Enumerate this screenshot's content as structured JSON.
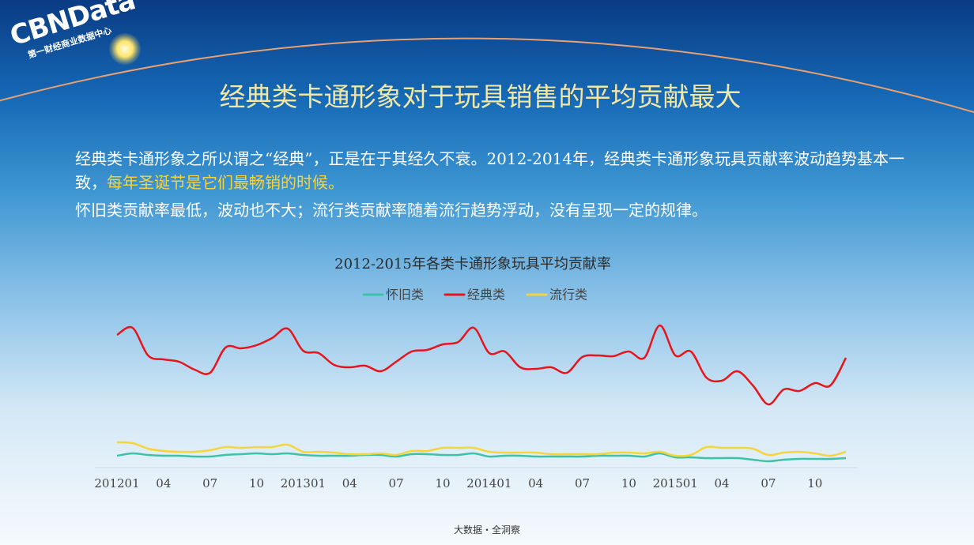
{
  "page": {
    "logo": "CBNData",
    "logo_sub": "第一财经商业数据中心",
    "heading": "经典类卡通形象对于玩具销售的平均贡献最大",
    "paragraphs": [
      [
        "经典类卡通形象之所以谓之“经典”，正是在于其经久不衰。2012-2014年，经典类卡通形象玩具贡献率波动趋势基本一致，",
        "每年圣诞节是它们最畅销的时候。"
      ],
      [
        "怀旧类贡献率最低，波动也不大；流行类贡献率随着流行趋势浮动，没有呈现一定的规律。"
      ]
    ],
    "footer": "大数据・全洞察"
  },
  "chart_data": {
    "type": "line",
    "title": "2012-2015年各类卡通形象玩具平均贡献率",
    "categories": [
      "201201",
      null,
      null,
      "04",
      null,
      null,
      "07",
      null,
      null,
      "10",
      null,
      null,
      "201301",
      null,
      null,
      "04",
      null,
      null,
      "07",
      null,
      null,
      "10",
      null,
      null,
      "201401",
      null,
      null,
      "04",
      null,
      null,
      "07",
      null,
      null,
      "10",
      null,
      null,
      "201501",
      null,
      null,
      "04",
      null,
      null,
      "07",
      null,
      null,
      "10",
      null,
      null
    ],
    "ylim": [
      0,
      40
    ],
    "smooth": true,
    "series": [
      {
        "name": "怀旧类",
        "color": "#3cc2a8",
        "values": [
          3.0,
          3.6,
          3.2,
          3.0,
          3.0,
          2.8,
          2.8,
          3.2,
          3.4,
          3.6,
          3.4,
          3.6,
          3.2,
          3.0,
          3.0,
          3.0,
          3.2,
          3.2,
          2.8,
          3.4,
          3.4,
          3.2,
          3.2,
          3.6,
          2.8,
          3.0,
          3.0,
          2.8,
          2.8,
          2.8,
          2.8,
          3.0,
          3.0,
          3.0,
          2.8,
          3.6,
          2.6,
          2.6,
          2.4,
          2.4,
          2.4,
          2.0,
          1.6,
          2.0,
          2.2,
          2.2,
          2.2,
          2.4
        ]
      },
      {
        "name": "经典类",
        "color": "#e8141c",
        "values": [
          33.6,
          35.4,
          28.4,
          27.4,
          26.8,
          24.8,
          24.0,
          30.4,
          30.2,
          31.0,
          32.8,
          35.2,
          29.6,
          29.0,
          26.0,
          25.4,
          25.8,
          24.4,
          26.8,
          29.4,
          29.8,
          31.2,
          31.8,
          35.4,
          29.0,
          29.4,
          25.4,
          25.0,
          25.4,
          24.0,
          28.0,
          28.4,
          28.2,
          29.4,
          27.8,
          36.0,
          28.4,
          29.4,
          22.8,
          22.0,
          24.4,
          20.8,
          16.0,
          19.8,
          19.4,
          21.4,
          20.8,
          27.8
        ]
      },
      {
        "name": "流行类",
        "color": "#f5d63a",
        "values": [
          6.4,
          6.2,
          4.8,
          4.2,
          4.0,
          4.0,
          4.4,
          5.2,
          5.0,
          5.2,
          5.2,
          5.8,
          4.0,
          4.0,
          3.8,
          3.4,
          3.4,
          3.6,
          3.2,
          4.2,
          4.2,
          5.0,
          5.0,
          5.0,
          4.0,
          3.8,
          3.8,
          3.8,
          3.4,
          3.4,
          3.4,
          3.4,
          3.8,
          3.8,
          3.6,
          4.0,
          3.0,
          3.2,
          5.2,
          5.0,
          5.0,
          4.8,
          3.2,
          3.8,
          4.0,
          3.6,
          3.0,
          4.0
        ]
      }
    ]
  }
}
